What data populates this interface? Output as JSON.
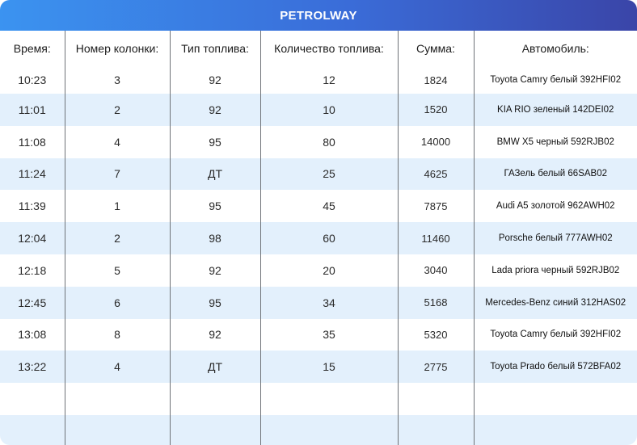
{
  "header": {
    "title": "PETROLWAY"
  },
  "table": {
    "columns": [
      "Время:",
      "Номер колонки:",
      "Тип топлива:",
      "Количество топлива:",
      "Сумма:",
      "Автомобиль:"
    ],
    "rows": [
      [
        "10:23",
        "3",
        "92",
        "12",
        "1824",
        "Toyota Camry белый 392HFI02"
      ],
      [
        "11:01",
        "2",
        "92",
        "10",
        "1520",
        "KIA RIO зеленый 142DEI02"
      ],
      [
        "11:08",
        "4",
        "95",
        "80",
        "14000",
        "BMW X5 черный 592RJB02"
      ],
      [
        "11:24",
        "7",
        "ДТ",
        "25",
        "4625",
        "ГАЗель белый 66SAB02"
      ],
      [
        "11:39",
        "1",
        "95",
        "45",
        "7875",
        "Audi A5 золотой 962AWH02"
      ],
      [
        "12:04",
        "2",
        "98",
        "60",
        "11460",
        "Porsche белый 777AWH02"
      ],
      [
        "12:18",
        "5",
        "92",
        "20",
        "3040",
        "Lada priora черный 592RJB02"
      ],
      [
        "12:45",
        "6",
        "95",
        "34",
        "5168",
        "Mercedes-Benz синий 312HAS02"
      ],
      [
        "13:08",
        "8",
        "92",
        "35",
        "5320",
        "Toyota Camry белый 392HFI02"
      ],
      [
        "13:22",
        "4",
        "ДТ",
        "15",
        "2775",
        "Toyota Prado белый 572BFA02"
      ],
      [
        "",
        "",
        "",
        "",
        "",
        ""
      ],
      [
        "",
        "",
        "",
        "",
        "",
        ""
      ]
    ]
  },
  "colors": {
    "header_start": "#3b93f0",
    "header_end": "#3a45a8",
    "stripe": "#e3f0fc",
    "divider": "#6f7378"
  }
}
